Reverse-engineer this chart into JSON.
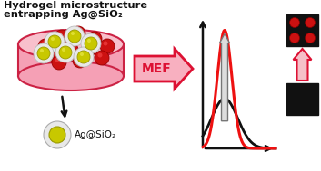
{
  "title_line1": "Hydrogel microstructure",
  "title_line2": "entrapping Ag@SiO₂",
  "ag_label": "Ag@SiO₂",
  "mef_label": "MEF",
  "background_color": "#ffffff",
  "hydrogel_fill": "#f5a0b5",
  "hydrogel_top_fill": "#f8c0cc",
  "hydrogel_edge": "#cc2244",
  "red_bead_color": "#cc1111",
  "yellow_bead_color": "#c8c800",
  "white_shell_color": "#e8e8e8",
  "arrow_mef_fill": "#f8b0c0",
  "arrow_mef_edge": "#dd1133",
  "curve_red": "#ee1111",
  "curve_black": "#111111",
  "dot_color": "#cc1111",
  "up_arrow_fill": "#f5c0c8",
  "up_arrow_edge": "#dd1133",
  "graph_arrow_color": "#111111",
  "inner_arrow_fill": "#dddddd",
  "inner_arrow_edge": "#777777"
}
